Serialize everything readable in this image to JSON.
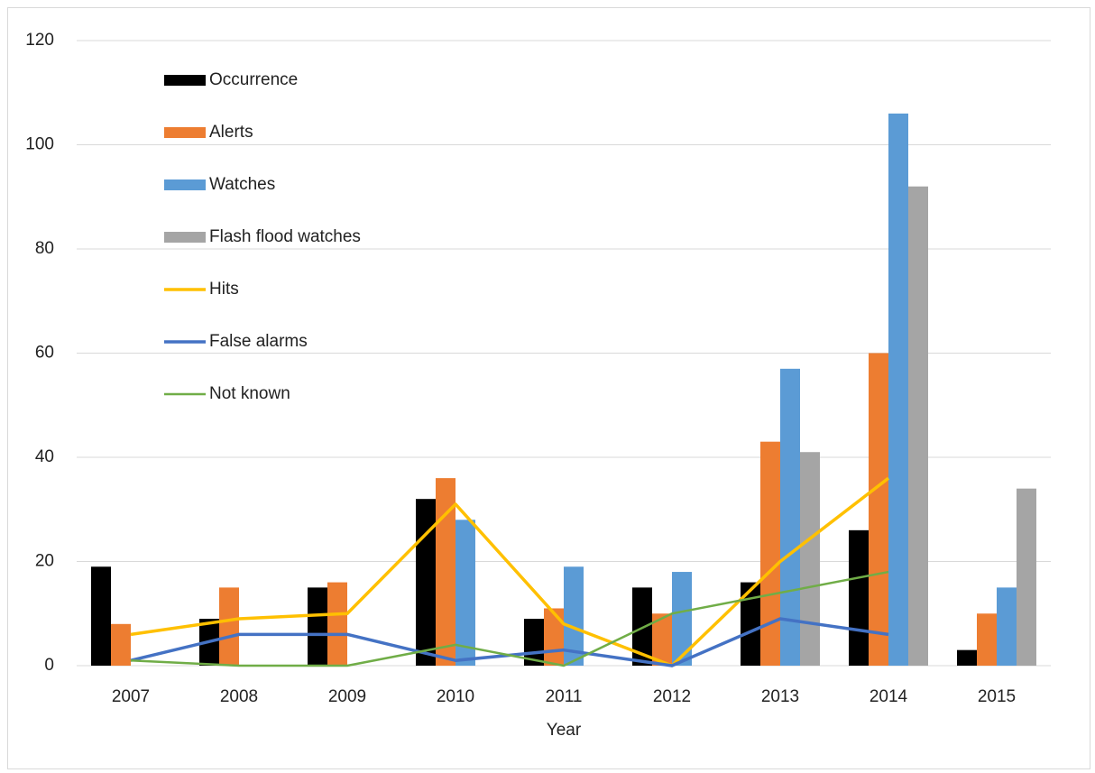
{
  "chart_data": {
    "type": "bar",
    "x_label": "Year",
    "categories": [
      "2007",
      "2008",
      "2009",
      "2010",
      "2011",
      "2012",
      "2013",
      "2014",
      "2015"
    ],
    "series": [
      {
        "name": "Occurrence",
        "type": "bar",
        "color": "#000000",
        "values": [
          19,
          9,
          15,
          32,
          9,
          15,
          16,
          26,
          3
        ]
      },
      {
        "name": "Alerts",
        "type": "bar",
        "color": "#ed7d31",
        "values": [
          8,
          15,
          16,
          36,
          11,
          10,
          43,
          60,
          10
        ]
      },
      {
        "name": "Watches",
        "type": "bar",
        "color": "#5b9bd5",
        "values": [
          null,
          null,
          null,
          28,
          19,
          18,
          57,
          106,
          15
        ]
      },
      {
        "name": "Flash flood watches",
        "type": "bar",
        "color": "#a5a5a5",
        "values": [
          null,
          null,
          null,
          null,
          null,
          null,
          41,
          92,
          34
        ]
      },
      {
        "name": "Hits",
        "type": "line",
        "color": "#ffc000",
        "values": [
          6,
          9,
          10,
          31,
          8,
          0,
          20,
          36,
          null
        ]
      },
      {
        "name": "False alarms",
        "type": "line",
        "color": "#4472c4",
        "values": [
          1,
          6,
          6,
          1,
          3,
          0,
          9,
          6,
          null
        ]
      },
      {
        "name": "Not known",
        "type": "line",
        "color": "#70ad47",
        "values": [
          1,
          0,
          0,
          4,
          0,
          10,
          14,
          18,
          null
        ]
      }
    ],
    "ylim": [
      0,
      120
    ],
    "yticks": [
      0,
      20,
      40,
      60,
      80,
      100,
      120
    ],
    "grid": true,
    "legend": "upper left"
  }
}
